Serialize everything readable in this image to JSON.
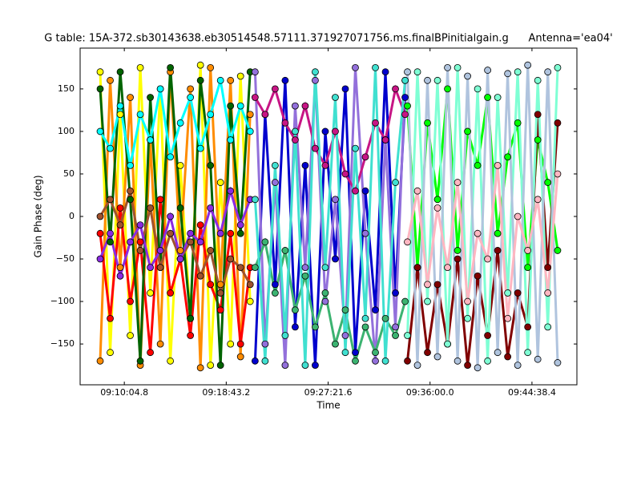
{
  "chart_data": {
    "type": "line",
    "title": "G table: 15A-372.sb30143638.eb30514548.57111.371927071756.ms.finalBPinitialgain.g      Antenna='ea04'",
    "x_label": "Time",
    "y_label": "Gain Phase (deg)",
    "xlim": [
      32780,
      35307
    ],
    "ylim": [
      -198,
      198
    ],
    "xticks": [
      {
        "value": 33004.8,
        "label": "09:10:04.8"
      },
      {
        "value": 33523.2,
        "label": "09:18:43.2"
      },
      {
        "value": 34041.6,
        "label": "09:27:21.6"
      },
      {
        "value": 34560,
        "label": "09:36:00.0"
      },
      {
        "value": 35078.4,
        "label": "09:44:38.4"
      }
    ],
    "yticks": [
      {
        "value": -150,
        "label": "−150"
      },
      {
        "value": -100,
        "label": "−100"
      },
      {
        "value": -50,
        "label": "−50"
      },
      0,
      50,
      100,
      150
    ],
    "series": [
      {
        "color": "#ffff00",
        "x": [
          32882,
          32933,
          32984,
          33035,
          33086,
          33137,
          33188,
          33239,
          33290,
          33341,
          33392,
          33443,
          33494,
          33545,
          33596,
          33645
        ],
        "values": [
          170,
          -160,
          120,
          -140,
          175,
          -90,
          150,
          -170,
          60,
          -120,
          178,
          -175,
          40,
          -150,
          165,
          -100
        ]
      },
      {
        "color": "#ff8c00",
        "x": [
          32882,
          32933,
          32984,
          33035,
          33086,
          33137,
          33188,
          33239,
          33290,
          33341,
          33392,
          33443,
          33494,
          33545,
          33596,
          33645
        ],
        "values": [
          -170,
          160,
          -60,
          140,
          -175,
          90,
          -150,
          170,
          -40,
          150,
          -178,
          175,
          -80,
          160,
          -165,
          120
        ]
      },
      {
        "color": "#ff0000",
        "x": [
          32882,
          32933,
          32984,
          33035,
          33086,
          33137,
          33188,
          33239,
          33290,
          33341,
          33392,
          33443,
          33494,
          33545,
          33596,
          33645
        ],
        "values": [
          -20,
          -120,
          10,
          -100,
          -30,
          -160,
          20,
          -90,
          -50,
          -140,
          -10,
          -80,
          -110,
          -20,
          -150,
          -60
        ]
      },
      {
        "color": "#006400",
        "x": [
          32882,
          32933,
          32984,
          33035,
          33086,
          33137,
          33188,
          33239,
          33290,
          33341,
          33392,
          33443,
          33494,
          33545,
          33596,
          33645
        ],
        "values": [
          150,
          -30,
          170,
          20,
          -170,
          140,
          -60,
          175,
          10,
          -120,
          160,
          60,
          -175,
          130,
          -20,
          170
        ]
      },
      {
        "color": "#00ffff",
        "x": [
          32882,
          32933,
          32984,
          33035,
          33086,
          33137,
          33188,
          33239,
          33290,
          33341,
          33392,
          33443,
          33494,
          33545,
          33596,
          33645
        ],
        "values": [
          100,
          80,
          130,
          60,
          120,
          90,
          150,
          70,
          110,
          140,
          80,
          120,
          160,
          90,
          130,
          100
        ]
      },
      {
        "color": "#a0522d",
        "x": [
          32882,
          32933,
          32984,
          33035,
          33086,
          33137,
          33188,
          33239,
          33290,
          33341,
          33392,
          33443,
          33494,
          33545,
          33596,
          33645
        ],
        "values": [
          0,
          20,
          -10,
          30,
          -40,
          10,
          -60,
          -20,
          -50,
          -30,
          -70,
          -40,
          -90,
          -50,
          -60,
          -80
        ]
      },
      {
        "color": "#8a2be2",
        "x": [
          32882,
          32933,
          32984,
          33035,
          33086,
          33137,
          33188,
          33239,
          33290,
          33341,
          33392,
          33443,
          33494,
          33545,
          33596,
          33645
        ],
        "values": [
          -50,
          -20,
          -70,
          -30,
          -10,
          -60,
          -40,
          0,
          -50,
          -20,
          -30,
          10,
          -20,
          30,
          -10,
          20
        ]
      },
      {
        "color": "#0000cd",
        "x": [
          33670,
          33721,
          33772,
          33823,
          33874,
          33925,
          33976,
          34027,
          34078,
          34129,
          34180,
          34231,
          34282,
          34333,
          34384,
          34433
        ],
        "values": [
          -170,
          120,
          -80,
          160,
          -130,
          60,
          -175,
          100,
          -50,
          150,
          -160,
          30,
          -110,
          170,
          -90,
          140
        ]
      },
      {
        "color": "#9370db",
        "x": [
          33670,
          33721,
          33772,
          33823,
          33874,
          33925,
          33976,
          34027,
          34078,
          34129,
          34180,
          34231,
          34282,
          34333,
          34384,
          34433
        ],
        "values": [
          170,
          -150,
          40,
          -175,
          130,
          -60,
          160,
          -100,
          20,
          -140,
          175,
          -20,
          -170,
          90,
          -130,
          160
        ]
      },
      {
        "color": "#3cb371",
        "x": [
          33670,
          33721,
          33772,
          33823,
          33874,
          33925,
          33976,
          34027,
          34078,
          34129,
          34180,
          34231,
          34282,
          34333,
          34384,
          34433
        ],
        "values": [
          -60,
          -30,
          -90,
          -40,
          -110,
          -70,
          -130,
          -90,
          -150,
          -110,
          -170,
          -130,
          -160,
          -120,
          -140,
          -100
        ]
      },
      {
        "color": "#c71585",
        "x": [
          33670,
          33721,
          33772,
          33823,
          33874,
          33925,
          33976,
          34027,
          34078,
          34129,
          34180,
          34231,
          34282,
          34333,
          34384,
          34433
        ],
        "values": [
          140,
          120,
          150,
          110,
          90,
          130,
          80,
          60,
          100,
          50,
          30,
          70,
          110,
          90,
          150,
          120
        ]
      },
      {
        "color": "#40e0d0",
        "x": [
          33670,
          33721,
          33772,
          33823,
          33874,
          33925,
          33976,
          34027,
          34078,
          34129,
          34180,
          34231,
          34282,
          34333,
          34384,
          34433
        ],
        "values": [
          20,
          -170,
          60,
          -140,
          100,
          -175,
          170,
          -60,
          140,
          -160,
          80,
          -120,
          175,
          -170,
          40,
          160
        ]
      },
      {
        "color": "#00ff00",
        "x": [
          34445,
          34496,
          34547,
          34598,
          34649,
          34700,
          34751,
          34802,
          34853,
          34904,
          34955,
          35006,
          35057,
          35108,
          35159,
          35209
        ],
        "values": [
          130,
          -60,
          110,
          20,
          150,
          -40,
          100,
          60,
          140,
          -20,
          70,
          110,
          -60,
          90,
          40,
          -40
        ]
      },
      {
        "color": "#800000",
        "x": [
          34445,
          34496,
          34547,
          34598,
          34649,
          34700,
          34751,
          34802,
          34853,
          34904,
          34955,
          35006,
          35057,
          35108,
          35159,
          35209
        ],
        "values": [
          -170,
          -60,
          -160,
          -80,
          -150,
          -50,
          -175,
          -70,
          -140,
          -40,
          -165,
          -90,
          -130,
          120,
          -60,
          110
        ]
      },
      {
        "color": "#7fffd4",
        "x": [
          34445,
          34496,
          34547,
          34598,
          34649,
          34700,
          34751,
          34802,
          34853,
          34904,
          34955,
          35006,
          35057,
          35108,
          35159,
          35209
        ],
        "values": [
          -140,
          170,
          -100,
          160,
          -150,
          175,
          -120,
          150,
          -170,
          140,
          -90,
          170,
          -160,
          160,
          -130,
          175
        ]
      },
      {
        "color": "#b0c4de",
        "x": [
          34445,
          34496,
          34547,
          34598,
          34649,
          34700,
          34751,
          34802,
          34853,
          34904,
          34955,
          35006,
          35057,
          35108,
          35159,
          35209
        ],
        "values": [
          170,
          -175,
          160,
          -165,
          175,
          -170,
          165,
          -178,
          172,
          -160,
          168,
          -175,
          178,
          -168,
          170,
          -172
        ]
      },
      {
        "color": "#ffb6c1",
        "x": [
          34445,
          34496,
          34547,
          34598,
          34649,
          34700,
          34751,
          34802,
          34853,
          34904,
          34955,
          35006,
          35057,
          35108,
          35159,
          35209
        ],
        "values": [
          -30,
          30,
          -80,
          10,
          -60,
          40,
          -100,
          -20,
          -50,
          60,
          -120,
          0,
          -40,
          20,
          -90,
          50
        ]
      }
    ]
  }
}
